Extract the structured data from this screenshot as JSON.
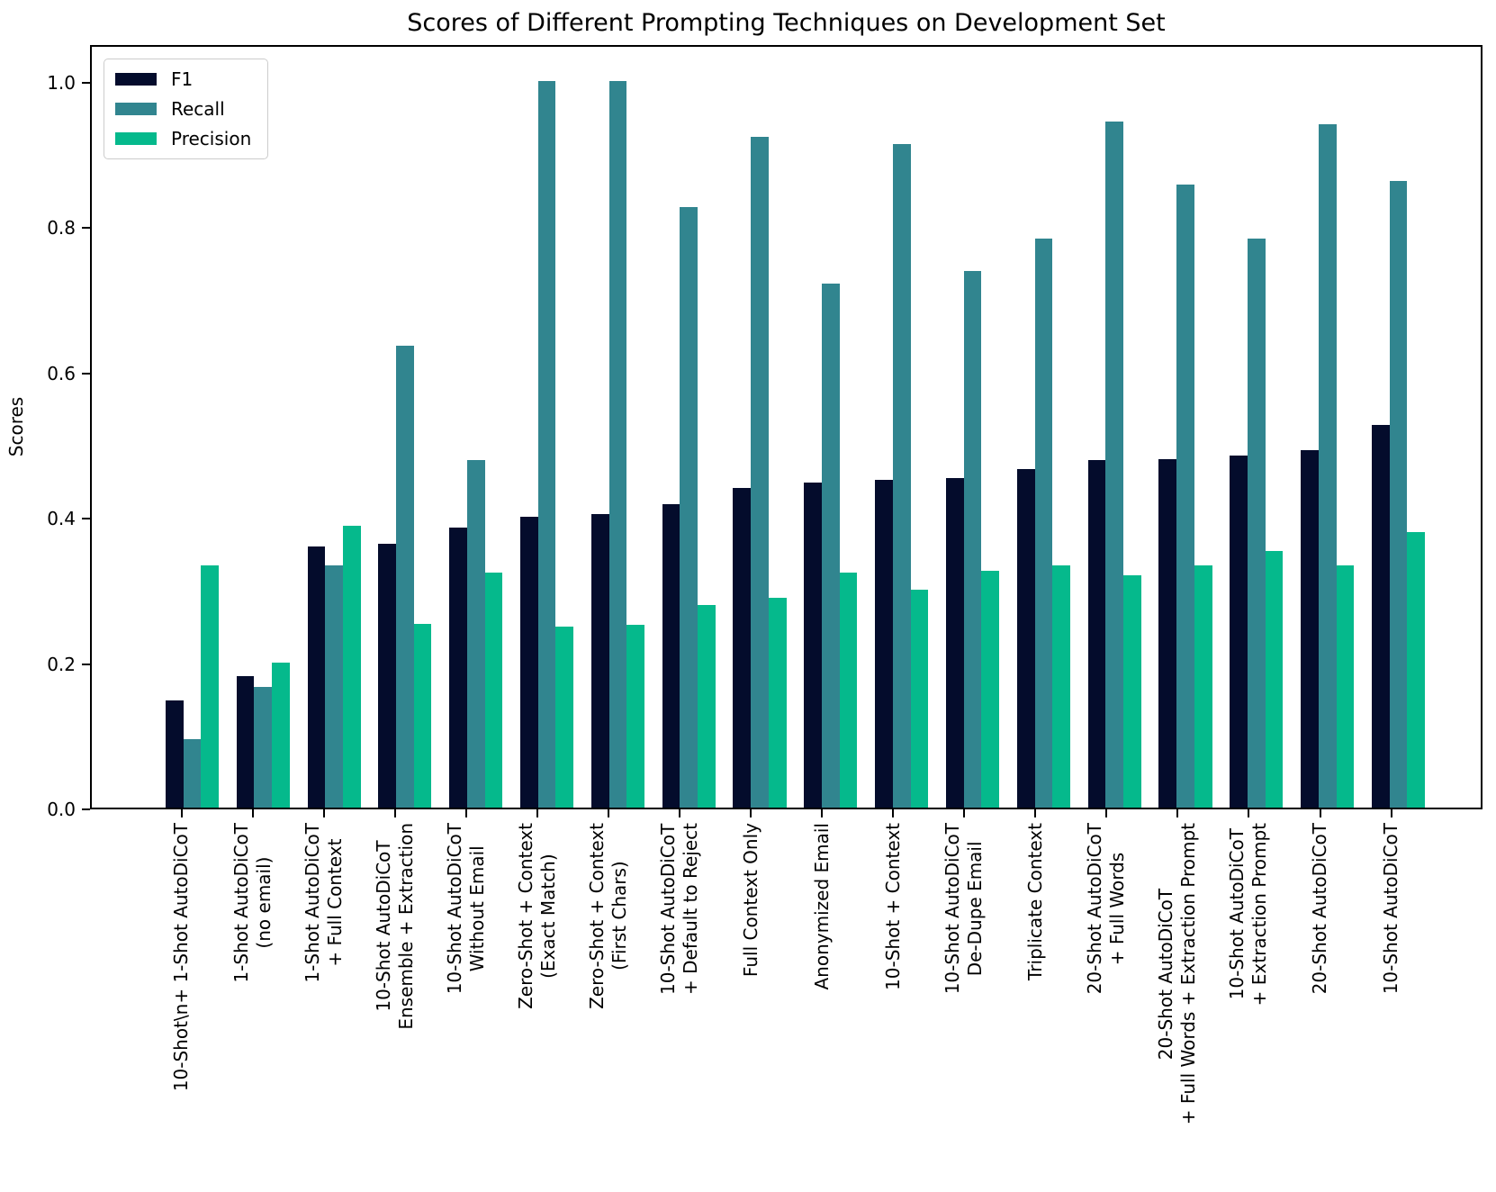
{
  "title": "Scores of Different Prompting Techniques on Development Set",
  "ylabel": "Scores",
  "axis": {
    "ytick_values": [
      0.0,
      0.2,
      0.4,
      0.6,
      0.8,
      1.0
    ],
    "ytick_labels": [
      "0.0",
      "0.2",
      "0.4",
      "0.6",
      "0.8",
      "1.0"
    ]
  },
  "legend": {
    "entries": [
      "F1",
      "Recall",
      "Precision"
    ]
  },
  "colors": {
    "f1": "#040c2c",
    "recall": "#31858f",
    "precision": "#05b98c"
  },
  "chart_data": {
    "type": "bar",
    "title": "Scores of Different Prompting Techniques on Development Set",
    "xlabel": "",
    "ylabel": "Scores",
    "ylim": [
      0.0,
      1.05
    ],
    "grid": false,
    "legend_position": "upper left",
    "categories": [
      "10-Shot\\n+ 1-Shot AutoDiCoT",
      "1-Shot AutoDiCoT\n(no email)",
      "1-Shot AutoDiCoT\n+ Full Context",
      "10-Shot AutoDiCoT\nEnsemble + Extraction",
      "10-Shot AutoDiCoT\nWithout Email",
      "Zero-Shot + Context\n(Exact Match)",
      "Zero-Shot + Context\n(First Chars)",
      "10-Shot AutoDiCoT\n+ Default to Reject",
      "Full Context Only",
      "Anonymized Email",
      "10-Shot + Context",
      "10-Shot AutoDiCoT\nDe-Dupe Email",
      "Triplicate Context",
      "20-Shot AutoDiCoT\n+ Full Words",
      "20-Shot AutoDiCoT\n+ Full Words + Extraction Prompt",
      "10-Shot AutoDiCoT\n+ Extraction Prompt",
      "20-Shot AutoDiCoT",
      "10-Shot AutoDiCoT"
    ],
    "series": [
      {
        "name": "F1",
        "color": "#040c2c",
        "values": [
          0.148,
          0.181,
          0.359,
          0.363,
          0.386,
          0.4,
          0.404,
          0.417,
          0.44,
          0.447,
          0.451,
          0.453,
          0.466,
          0.478,
          0.479,
          0.485,
          0.492,
          0.527
        ]
      },
      {
        "name": "Recall",
        "color": "#31858f",
        "values": [
          0.094,
          0.166,
          0.333,
          0.636,
          0.478,
          1.0,
          1.0,
          0.826,
          0.923,
          0.721,
          0.913,
          0.739,
          0.783,
          0.944,
          0.857,
          0.783,
          0.941,
          0.863
        ]
      },
      {
        "name": "Precision",
        "color": "#05b98c",
        "values": [
          0.333,
          0.199,
          0.388,
          0.253,
          0.323,
          0.249,
          0.252,
          0.279,
          0.289,
          0.324,
          0.3,
          0.326,
          0.333,
          0.32,
          0.333,
          0.353,
          0.333,
          0.379
        ]
      }
    ]
  }
}
